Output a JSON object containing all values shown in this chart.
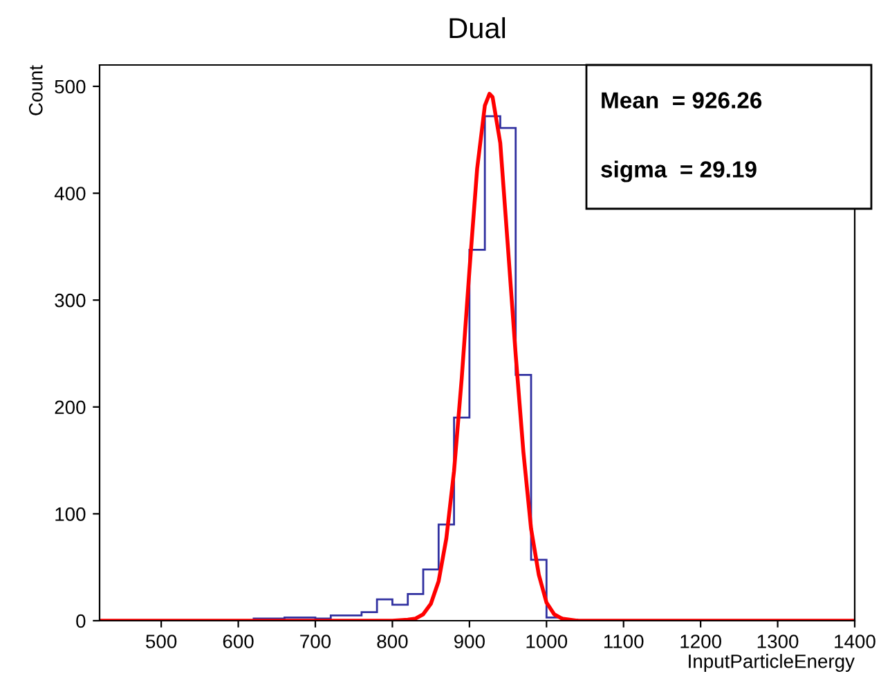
{
  "chart_data": {
    "type": "histogram",
    "title": "Dual",
    "xlabel": "InputParticleEnergy",
    "ylabel": "Count",
    "bins": [
      620,
      640,
      660,
      680,
      700,
      720,
      740,
      760,
      780,
      800,
      820,
      840,
      860,
      880,
      900,
      920,
      940,
      960,
      980,
      1000,
      1020,
      1040
    ],
    "series": [
      {
        "color": "#3030a0",
        "values": [
          2,
          2,
          3,
          3,
          2,
          5,
          5,
          8,
          20,
          15,
          25,
          48,
          90,
          190,
          347,
          472,
          461,
          230,
          57,
          3,
          1
        ]
      },
      {
        "type": "line",
        "color": "#ff0000",
        "x": [
          420,
          800,
          820,
          830,
          840,
          850,
          860,
          870,
          880,
          890,
          900,
          910,
          920,
          926,
          930,
          940,
          950,
          960,
          970,
          980,
          990,
          1000,
          1010,
          1020,
          1030,
          1040,
          1400
        ],
        "values": [
          0,
          0,
          1,
          2,
          6,
          16,
          37,
          77,
          140,
          227,
          328,
          423,
          482,
          493,
          490,
          447,
          349,
          249,
          158,
          86,
          43,
          17,
          6,
          2,
          1,
          0,
          0
        ]
      }
    ],
    "xlim": [
      420,
      1400
    ],
    "ylim": [
      0,
      520
    ],
    "xticks": [
      500,
      600,
      700,
      800,
      900,
      1000,
      1100,
      1200,
      1300,
      1400
    ],
    "yticks": [
      0,
      100,
      200,
      300,
      400,
      500
    ],
    "grid": false,
    "annotations": [
      "Mean  = 926.26",
      "sigma  = 29.19"
    ]
  }
}
